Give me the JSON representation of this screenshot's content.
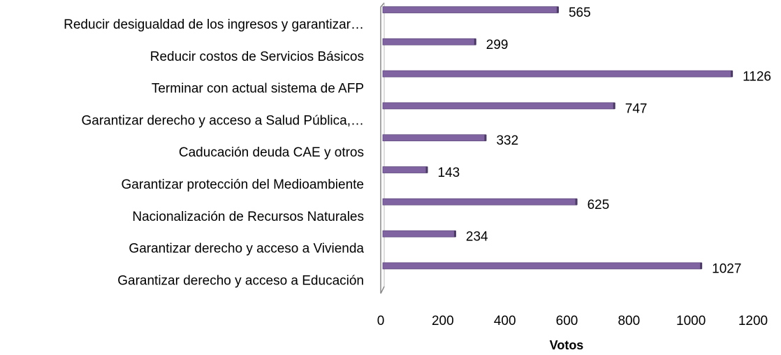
{
  "chart_data": {
    "type": "bar",
    "orientation": "horizontal",
    "x_label": "Votos",
    "categories": [
      "Reducir desigualdad de los ingresos y garantizar…",
      "Reducir costos de Servicios Básicos",
      "Terminar con actual sistema de AFP",
      "Garantizar derecho y acceso a Salud Pública,…",
      "Caducación deuda CAE y otros",
      "Garantizar protección del Medioambiente",
      "Nacionalización de Recursos Naturales",
      "Garantizar derecho y acceso a Vivienda",
      "Garantizar derecho y acceso a Educación"
    ],
    "values": [
      565,
      299,
      1126,
      747,
      332,
      143,
      625,
      234,
      1027
    ],
    "color": "#8064a2",
    "xlim": [
      0,
      1200
    ],
    "xticks": [
      0,
      200,
      400,
      600,
      800,
      1000,
      1200
    ],
    "grid": false
  }
}
